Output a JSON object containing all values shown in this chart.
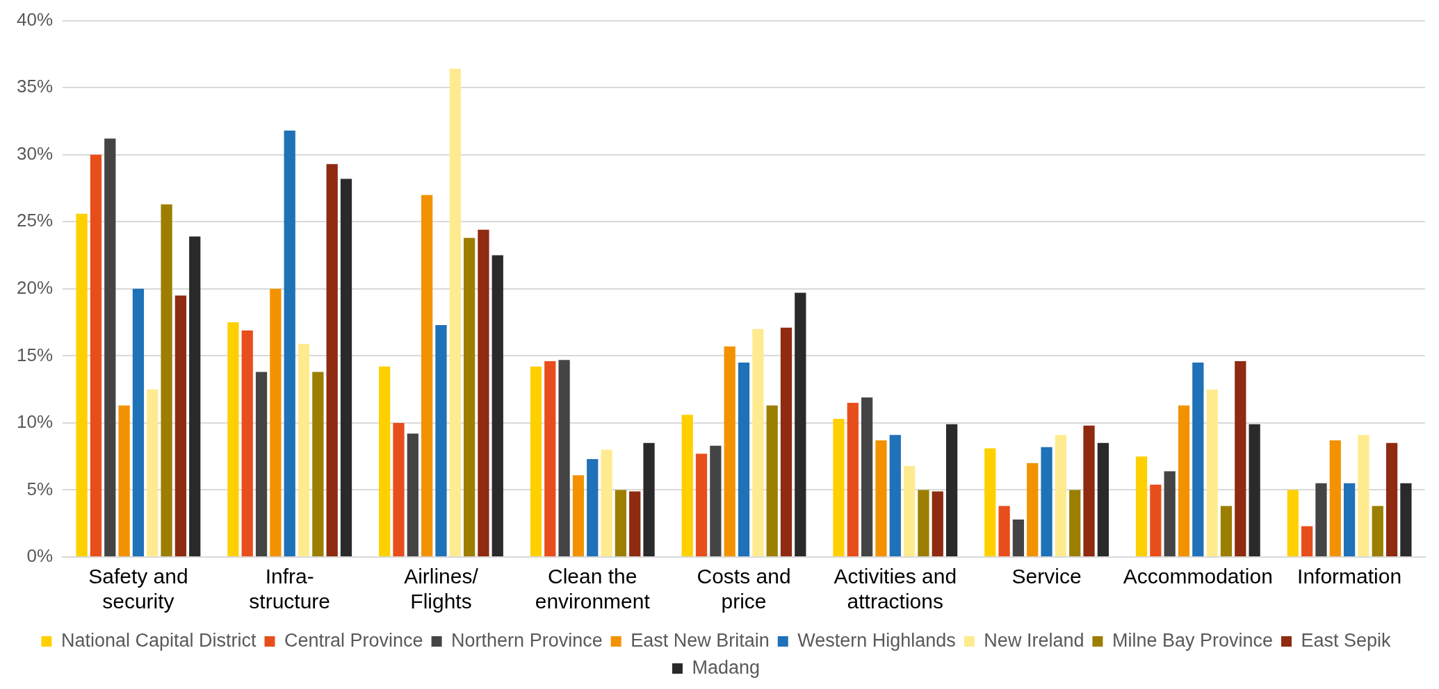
{
  "chart_data": {
    "type": "bar",
    "categories": [
      "Safety and\nsecurity",
      "Infra-\nstructure",
      "Airlines/\nFlights",
      "Clean the\nenvironment",
      "Costs and\nprice",
      "Activities and\nattractions",
      "Service",
      "Accommodation",
      "Information"
    ],
    "series": [
      {
        "name": "National Capital District",
        "color": "#ffd000",
        "values": [
          25.6,
          17.5,
          14.2,
          14.2,
          10.6,
          10.3,
          8.1,
          7.5,
          5.0
        ]
      },
      {
        "name": "Central Province",
        "color": "#e84e1c",
        "values": [
          30.0,
          16.9,
          10.0,
          14.6,
          7.7,
          11.5,
          3.8,
          5.4,
          2.3
        ]
      },
      {
        "name": "Northern Province",
        "color": "#444444",
        "values": [
          31.2,
          13.8,
          9.2,
          14.7,
          8.3,
          11.9,
          2.8,
          6.4,
          5.5
        ]
      },
      {
        "name": "East New Britain",
        "color": "#f39200",
        "values": [
          11.3,
          20.0,
          27.0,
          6.1,
          15.7,
          8.7,
          7.0,
          11.3,
          8.7
        ]
      },
      {
        "name": "Western Highlands",
        "color": "#1f71b8",
        "values": [
          20.0,
          31.8,
          17.3,
          7.3,
          14.5,
          9.1,
          8.2,
          14.5,
          5.5
        ]
      },
      {
        "name": "New Ireland",
        "color": "#ffeb8f",
        "values": [
          12.5,
          15.9,
          36.4,
          8.0,
          17.0,
          6.8,
          9.1,
          12.5,
          9.1
        ]
      },
      {
        "name": "Milne Bay Province",
        "color": "#9c7e00",
        "values": [
          26.3,
          13.8,
          23.8,
          5.0,
          11.3,
          5.0,
          5.0,
          3.8,
          3.8
        ]
      },
      {
        "name": "East Sepik",
        "color": "#8e2b10",
        "values": [
          19.5,
          29.3,
          24.4,
          4.9,
          17.1,
          4.9,
          9.8,
          14.6,
          8.5
        ]
      },
      {
        "name": "Madang",
        "color": "#2a2a2a",
        "values": [
          23.9,
          28.2,
          22.5,
          8.5,
          19.7,
          9.9,
          8.5,
          9.9,
          5.5
        ]
      }
    ],
    "ylim": [
      0,
      40
    ],
    "yticks": [
      {
        "value": 0,
        "label": "0%"
      },
      {
        "value": 5,
        "label": "5%"
      },
      {
        "value": 10,
        "label": "10%"
      },
      {
        "value": 15,
        "label": "15%"
      },
      {
        "value": 20,
        "label": "20%"
      },
      {
        "value": 25,
        "label": "25%"
      },
      {
        "value": 30,
        "label": "30%"
      },
      {
        "value": 35,
        "label": "35%"
      },
      {
        "value": 40,
        "label": "40%"
      }
    ],
    "grid": "y",
    "legend": "bottom"
  }
}
